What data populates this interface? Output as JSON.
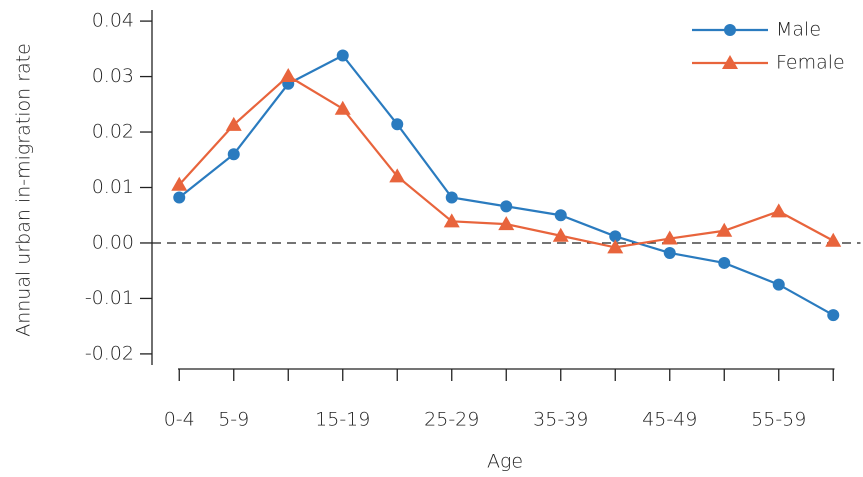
{
  "chart_data": {
    "type": "line",
    "x_label": "Age",
    "y_label": "Annual urban in-migration rate",
    "categories": [
      "0-4",
      "5-9",
      null,
      "15-19",
      null,
      "25-29",
      null,
      "35-39",
      null,
      "45-49",
      null,
      "55-59",
      null
    ],
    "series": [
      {
        "name": "Male",
        "color": "#2a7bbf",
        "marker": "circle",
        "values": [
          0.0082,
          0.016,
          0.0287,
          0.0338,
          0.0214,
          0.0082,
          0.0066,
          0.005,
          0.0012,
          -0.0018,
          -0.0036,
          -0.0075,
          -0.013
        ]
      },
      {
        "name": "Female",
        "color": "#e8643c",
        "marker": "triangle",
        "values": [
          0.0105,
          0.0213,
          0.0301,
          0.0242,
          0.012,
          0.0039,
          0.0034,
          0.0013,
          -0.0008,
          0.0008,
          0.0022,
          0.0057,
          0.0004
        ]
      }
    ],
    "ylim": [
      -0.022,
      0.042
    ],
    "yticks": [
      -0.02,
      -0.01,
      {
        "value": 0,
        "label": "0.00"
      },
      0.01,
      0.02,
      0.03,
      0.04
    ],
    "legend": "upper right"
  }
}
